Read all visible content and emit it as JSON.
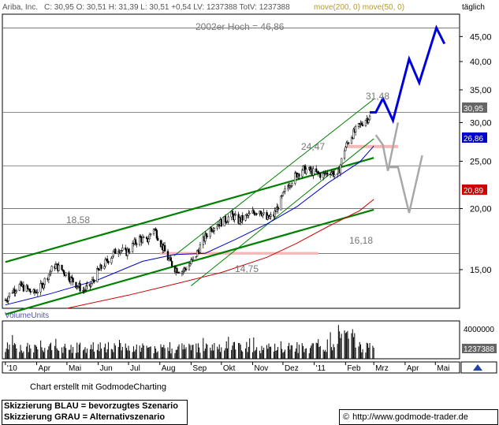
{
  "header": {
    "symbol": "Ariba, Inc.",
    "quote": "C: 30,95 O: 30,51 H: 31,39 L: 30,51 +0,54 LV: 1237388 TotV: 1237388",
    "indicators": "move(200, 0) move(50, 0)",
    "period": "täglich"
  },
  "annotations": {
    "high_2002": "2002er Hoch = 46,86",
    "label_3148": "31,48",
    "label_2447": "24,47",
    "label_1858": "18,58",
    "label_1618": "16,18",
    "label_1475": "14,75"
  },
  "price_tags": {
    "close": "30,95",
    "ma50": "26,86",
    "ma200": "20,89"
  },
  "volume": {
    "label": "VolumeUnits",
    "ticks": [
      "4000000",
      "1237388"
    ]
  },
  "footer": {
    "credit": "Chart erstellt mit GodmodeCharting",
    "legend_blue": "Skizzierung BLAU = bevorzugtes Szenario",
    "legend_grey": "Skizzierung GRAU = Alternativszenario",
    "url": "http://www.godmode-trader.de",
    "copyright_symbol": "©"
  },
  "colors": {
    "candle": "#000000",
    "ma50": "#0000cc",
    "ma200": "#cc0000",
    "trend": "#008000",
    "scenario_blue": "#0000dd",
    "scenario_grey": "#a8a8a8",
    "support_zone": "#f4b8b8",
    "close_tag": "#666666"
  },
  "chart_data": {
    "type": "candlestick",
    "log_scale": true,
    "ylim": [
      12.5,
      50
    ],
    "y_ticks": [
      {
        "label": "45,00",
        "value": 45
      },
      {
        "label": "40,00",
        "value": 40
      },
      {
        "label": "35,00",
        "value": 35
      },
      {
        "label": "30,00",
        "value": 30
      },
      {
        "label": "25,00",
        "value": 25
      },
      {
        "label": "20,00",
        "value": 20
      },
      {
        "label": "15,00",
        "value": 15
      }
    ],
    "x_ticks": [
      "'10",
      "Apr",
      "Mai",
      "Jun",
      "Jul",
      "Aug",
      "Sep",
      "Okt",
      "Nov",
      "Dez",
      "'11",
      "Feb",
      "Mrz",
      "Apr",
      "Mai"
    ],
    "horizontal_levels": [
      46.86,
      31.48,
      24.47,
      20.0,
      18.58,
      16.18,
      14.75
    ],
    "close_path": [
      [
        "2010-03-01",
        13.0
      ],
      [
        "2010-03-08",
        13.6
      ],
      [
        "2010-03-15",
        13.9
      ],
      [
        "2010-03-22",
        13.7
      ],
      [
        "2010-03-29",
        13.4
      ],
      [
        "2010-04-05",
        13.8
      ],
      [
        "2010-04-12",
        14.6
      ],
      [
        "2010-04-19",
        15.3
      ],
      [
        "2010-04-26",
        15.0
      ],
      [
        "2010-05-03",
        14.5
      ],
      [
        "2010-05-10",
        14.0
      ],
      [
        "2010-05-17",
        13.6
      ],
      [
        "2010-05-24",
        13.9
      ],
      [
        "2010-05-31",
        14.8
      ],
      [
        "2010-06-07",
        15.4
      ],
      [
        "2010-06-14",
        16.0
      ],
      [
        "2010-06-21",
        16.6
      ],
      [
        "2010-06-28",
        16.2
      ],
      [
        "2010-07-05",
        16.8
      ],
      [
        "2010-07-12",
        17.4
      ],
      [
        "2010-07-19",
        17.1
      ],
      [
        "2010-07-26",
        18.3
      ],
      [
        "2010-08-02",
        17.0
      ],
      [
        "2010-08-09",
        15.8
      ],
      [
        "2010-08-16",
        15.1
      ],
      [
        "2010-08-23",
        14.9
      ],
      [
        "2010-08-30",
        15.3
      ],
      [
        "2010-09-06",
        16.1
      ],
      [
        "2010-09-13",
        17.2
      ],
      [
        "2010-09-20",
        18.2
      ],
      [
        "2010-09-27",
        18.6
      ],
      [
        "2010-10-04",
        18.9
      ],
      [
        "2010-10-11",
        19.4
      ],
      [
        "2010-10-18",
        18.9
      ],
      [
        "2010-10-25",
        19.2
      ],
      [
        "2010-11-01",
        19.6
      ],
      [
        "2010-11-08",
        19.9
      ],
      [
        "2010-11-15",
        19.0
      ],
      [
        "2010-11-22",
        19.4
      ],
      [
        "2010-11-29",
        20.8
      ],
      [
        "2010-12-06",
        22.3
      ],
      [
        "2010-12-13",
        23.3
      ],
      [
        "2010-12-20",
        24.1
      ],
      [
        "2010-12-27",
        23.9
      ],
      [
        "2011-01-03",
        23.6
      ],
      [
        "2011-01-10",
        23.4
      ],
      [
        "2011-01-17",
        23.9
      ],
      [
        "2011-01-24",
        23.2
      ],
      [
        "2011-01-31",
        26.5
      ],
      [
        "2011-02-07",
        28.2
      ],
      [
        "2011-02-14",
        29.4
      ],
      [
        "2011-02-21",
        30.5
      ],
      [
        "2011-02-28",
        30.95
      ]
    ],
    "ma50_path": [
      [
        "2010-03-01",
        12.7
      ],
      [
        "2010-04-15",
        13.4
      ],
      [
        "2010-06-01",
        14.3
      ],
      [
        "2010-07-15",
        15.6
      ],
      [
        "2010-08-15",
        16.1
      ],
      [
        "2010-09-15",
        16.2
      ],
      [
        "2010-10-15",
        17.3
      ],
      [
        "2010-11-15",
        18.6
      ],
      [
        "2010-12-15",
        20.2
      ],
      [
        "2011-01-15",
        22.6
      ],
      [
        "2011-02-15",
        24.9
      ],
      [
        "2011-03-01",
        26.86
      ]
    ],
    "ma200_path": [
      [
        "2010-05-01",
        12.5
      ],
      [
        "2010-07-01",
        13.3
      ],
      [
        "2010-08-15",
        14.0
      ],
      [
        "2010-10-01",
        14.8
      ],
      [
        "2010-11-15",
        15.9
      ],
      [
        "2010-12-15",
        17.0
      ],
      [
        "2011-01-15",
        18.4
      ],
      [
        "2011-02-15",
        19.8
      ],
      [
        "2011-03-01",
        20.89
      ]
    ],
    "scenario_blue": [
      [
        "2011-02-25",
        31.48
      ],
      [
        "2011-03-03",
        31.48
      ],
      [
        "2011-03-10",
        33.6
      ],
      [
        "2011-03-20",
        30.3
      ],
      [
        "2011-04-05",
        40.5
      ],
      [
        "2011-04-15",
        36.2
      ],
      [
        "2011-05-02",
        46.9
      ],
      [
        "2011-05-10",
        43.5
      ]
    ],
    "scenario_grey": [
      [
        "2011-03-03",
        28.3
      ],
      [
        "2011-03-10",
        27.0
      ],
      [
        "2011-03-15",
        23.9
      ],
      [
        "2011-03-25",
        30.0
      ],
      [
        "2011-03-15",
        24.3
      ],
      [
        "2011-03-25",
        24.3
      ],
      [
        "2011-04-05",
        19.6
      ],
      [
        "2011-04-18",
        25.7
      ]
    ],
    "trend_lines": [
      {
        "from": [
          "2010-03-01",
          15.55
        ],
        "to": [
          "2011-03-01",
          25.4
        ]
      },
      {
        "from": [
          "2010-03-01",
          12.15
        ],
        "to": [
          "2011-03-01",
          19.9
        ]
      },
      {
        "from": [
          "2010-08-15",
          16.0
        ],
        "to": [
          "2011-03-01",
          33.5
        ]
      },
      {
        "from": [
          "2010-09-01",
          13.9
        ],
        "to": [
          "2011-03-01",
          27.8
        ]
      }
    ],
    "support_zone": [
      26.6,
      27.0
    ],
    "resistance_zone": [
      16.1,
      16.3
    ],
    "volume_max": 4000000,
    "volume_last": 1237388
  }
}
